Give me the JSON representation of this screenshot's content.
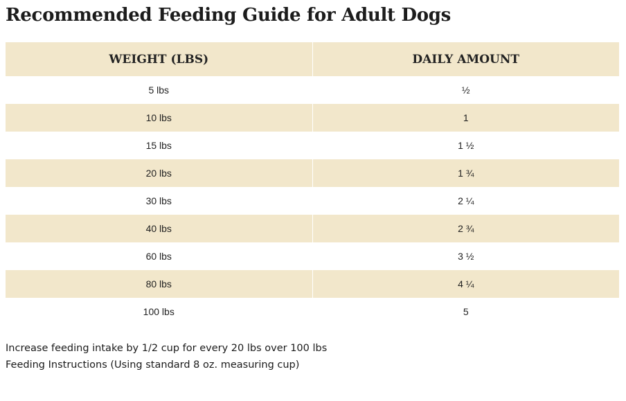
{
  "title": "Recommended Feeding Guide for Adult Dogs",
  "table": {
    "headers": {
      "weight": "WEIGHT (LBS)",
      "amount": "DAILY AMOUNT"
    },
    "rows": [
      {
        "weight": "5 lbs",
        "amount": "½"
      },
      {
        "weight": "10 lbs",
        "amount": "1"
      },
      {
        "weight": "15 lbs",
        "amount": "1 ½"
      },
      {
        "weight": "20 lbs",
        "amount": "1 ¾"
      },
      {
        "weight": "30 lbs",
        "amount": "2 ¼"
      },
      {
        "weight": "40 lbs",
        "amount": "2 ¾"
      },
      {
        "weight": "60 lbs",
        "amount": "3 ½"
      },
      {
        "weight": "80 lbs",
        "amount": "4 ¼"
      },
      {
        "weight": "100 lbs",
        "amount": "5"
      }
    ]
  },
  "notes": {
    "increase": "Increase feeding intake by 1/2 cup for every 20 lbs over 100 lbs",
    "instructions": "Feeding Instructions (Using standard 8 oz. measuring cup)"
  },
  "colors": {
    "row_stripe": "#f2e7cb",
    "text": "#1a1a1a"
  }
}
